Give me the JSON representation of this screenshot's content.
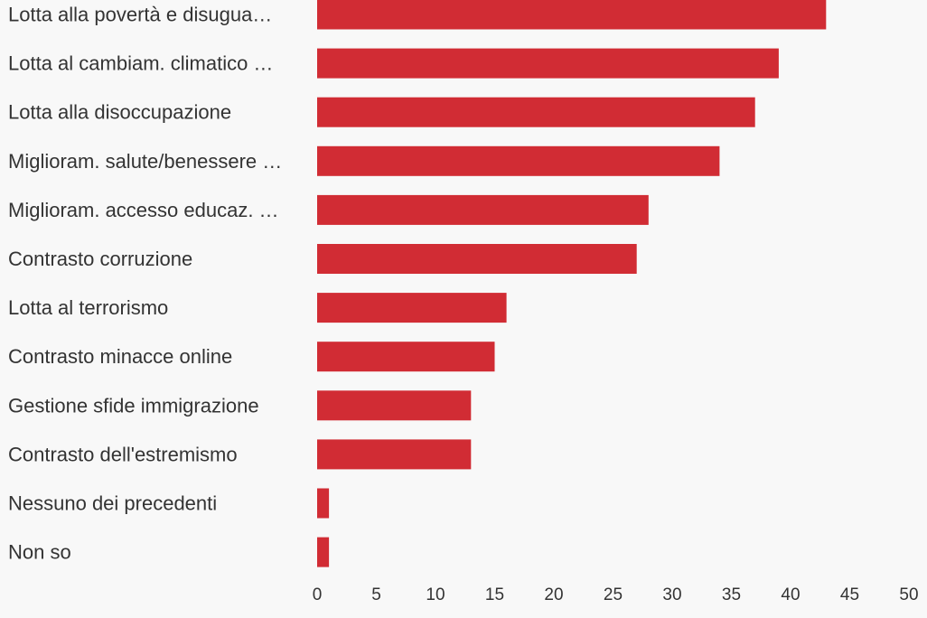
{
  "chart_data": {
    "type": "bar",
    "orientation": "horizontal",
    "categories": [
      "Lotta alla povertà e disugua…",
      "Lotta al cambiam. climatico …",
      "Lotta alla disoccupazione",
      "Miglioram. salute/benessere …",
      "Miglioram. accesso educaz. …",
      "Contrasto corruzione",
      "Lotta al terrorismo",
      "Contrasto minacce online",
      "Gestione sfide immigrazione",
      "Contrasto dell'estremismo",
      "Nessuno dei precedenti",
      "Non so"
    ],
    "values": [
      43,
      39,
      37,
      34,
      28,
      27,
      16,
      15,
      13,
      13,
      1,
      1
    ],
    "xlim": [
      0,
      50
    ],
    "xticks": [
      "0",
      "5",
      "10",
      "15",
      "20",
      "25",
      "30",
      "35",
      "40",
      "45",
      "50"
    ],
    "title": "",
    "xlabel": "",
    "ylabel": "",
    "grid": false,
    "legend": "none",
    "bar_color": "#d12c34",
    "background": "#f8f8f8"
  }
}
